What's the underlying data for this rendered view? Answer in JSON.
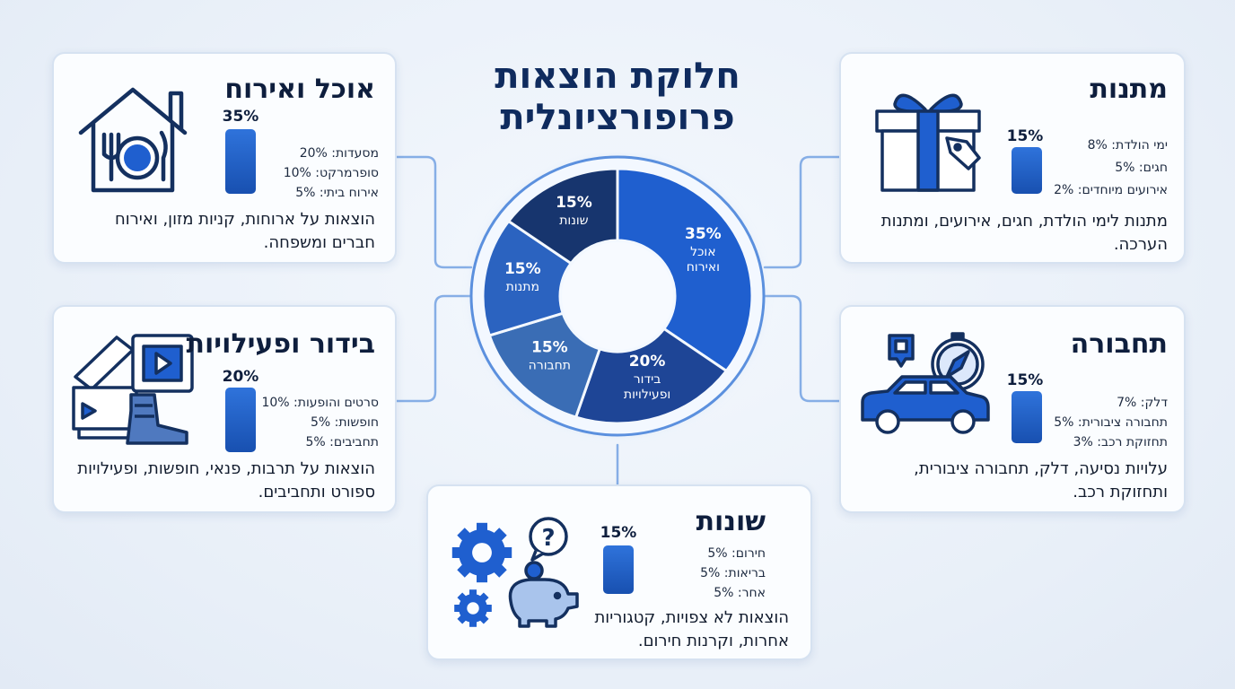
{
  "title": {
    "line1": "חלוקת הוצאות",
    "line2": "פרופורציונלית"
  },
  "colors": {
    "primary": "#1f5fcf",
    "dark_navy": "#17356e",
    "medium_blue": "#2a63bd",
    "card_border": "#d6e2f1",
    "connector": "#86aee6"
  },
  "chart_data": {
    "type": "pie",
    "donut": true,
    "slices": [
      {
        "label": "אוכל ואירוח",
        "value": 35,
        "value_label": "35%",
        "color": "#1f5fcf"
      },
      {
        "label": "בידור ופעילויות",
        "value": 20,
        "value_label": "20%",
        "color": "#1e4596"
      },
      {
        "label": "תחבורה",
        "value": 15,
        "value_label": "15%",
        "color": "#3a6db5"
      },
      {
        "label": "מתנות",
        "value": 15,
        "value_label": "15%",
        "color": "#2b63c0"
      },
      {
        "label": "שונות",
        "value": 15,
        "value_label": "15%",
        "color": "#17356e"
      }
    ]
  },
  "cards": {
    "food": {
      "title": "אוכל ואירוח",
      "percent_label": "35%",
      "items": [
        "מסעדות: 20%",
        "סופרמרקט: 10%",
        "אירוח ביתי: 5%"
      ],
      "description": "הוצאות על ארוחות, קניות מזון, ואירוח חברים ומשפחה.",
      "icon": "house-plate-icon"
    },
    "gifts": {
      "title": "מתנות",
      "percent_label": "15%",
      "items": [
        "ימי הולדת: 8%",
        "חגים: 5%",
        "אירועים מיוחדים: 2%"
      ],
      "description": "מתנות לימי הולדת, חגים, אירועים, ומתנות הערכה.",
      "icon": "gift-box-icon"
    },
    "entertainment": {
      "title": "בידור ופעילויות",
      "percent_label": "20%",
      "items": [
        "סרטים והופעות: 10%",
        "חופשות: 5%",
        "תחביבים: 5%"
      ],
      "description": "הוצאות על תרבות, פנאי, חופשות, ופעילויות ספורט ותחביבים.",
      "icon": "ticket-film-boot-icon"
    },
    "transport": {
      "title": "תחבורה",
      "percent_label": "15%",
      "items": [
        "דלק: 7%",
        "תחבורה ציבורית: 5%",
        "תחזוקת רכב: 3%"
      ],
      "description": "עלויות נסיעה, דלק, תחבורה ציבורית, ותחזוקת רכב.",
      "icon": "car-compass-icon"
    },
    "misc": {
      "title": "שונות",
      "percent_label": "15%",
      "items": [
        "חירום: 5%",
        "בריאות: 5%",
        "אחר: 5%"
      ],
      "description": "הוצאות לא צפויות, קטגוריות אחרות, וקרנות חירום.",
      "icon": "gears-piggybank-icon"
    }
  }
}
